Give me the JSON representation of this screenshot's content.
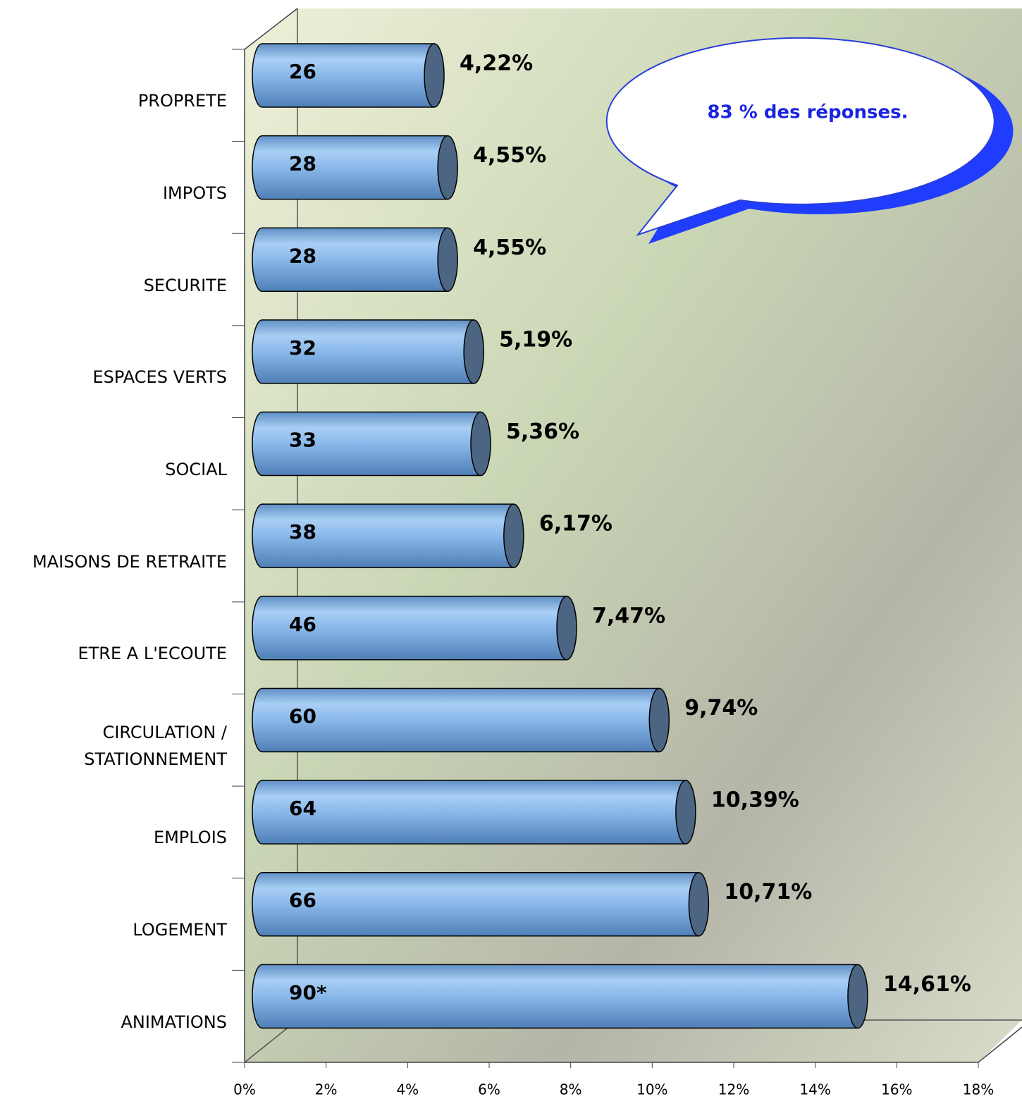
{
  "chart_data": {
    "type": "bar",
    "orientation": "horizontal",
    "annotation": "83 % des réponses.",
    "categories": [
      "PROPRETE",
      "IMPOTS",
      "SECURITE",
      "ESPACES VERTS",
      "SOCIAL",
      "MAISONS DE RETRAITE",
      "ETRE A L'ECOUTE",
      "CIRCULATION / STATIONNEMENT",
      "EMPLOIS",
      "LOGEMENT",
      "ANIMATIONS"
    ],
    "values": [
      4.22,
      4.55,
      4.55,
      5.19,
      5.36,
      6.17,
      7.47,
      9.74,
      10.39,
      10.71,
      14.61
    ],
    "value_labels": [
      "4,22%",
      "4,55%",
      "4,55%",
      "5,19%",
      "5,36%",
      "6,17%",
      "7,47%",
      "9,74%",
      "10,39%",
      "10,71%",
      "14,61%"
    ],
    "counts": [
      "26",
      "28",
      "28",
      "32",
      "33",
      "38",
      "46",
      "60",
      "64",
      "66",
      "90*"
    ],
    "color": "#8ab8ea",
    "xlim": [
      0,
      18
    ],
    "xticks": [
      {
        "value": 0,
        "label": "0%"
      },
      {
        "value": 2,
        "label": "2%"
      },
      {
        "value": 4,
        "label": "4%"
      },
      {
        "value": 6,
        "label": "6%"
      },
      {
        "value": 8,
        "label": "8%"
      },
      {
        "value": 10,
        "label": "10%"
      },
      {
        "value": 12,
        "label": "12%"
      },
      {
        "value": 14,
        "label": "14%"
      },
      {
        "value": 16,
        "label": "16%"
      },
      {
        "value": 18,
        "label": "18%"
      }
    ]
  }
}
